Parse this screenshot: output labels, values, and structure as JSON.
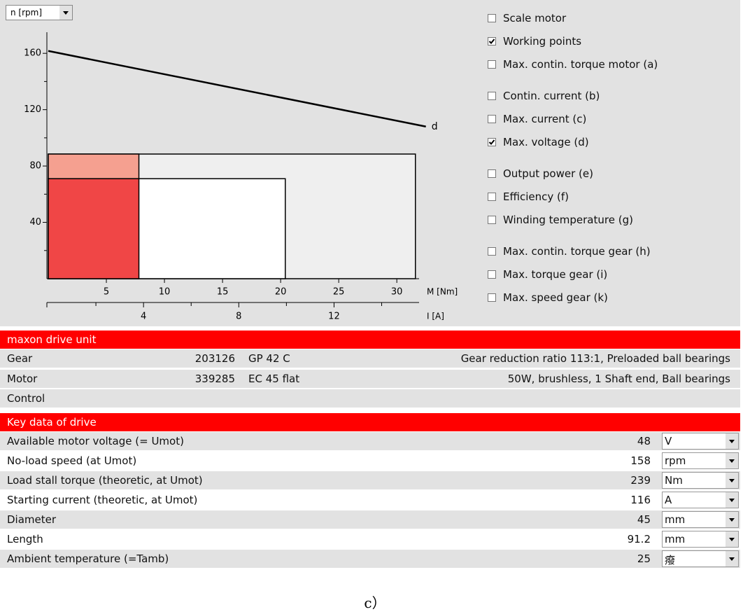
{
  "dropdown": "n [rpm]",
  "chart_data": {
    "type": "line",
    "x_label": "M [Nm]",
    "x2_label": "I [A]",
    "xlim": [
      0,
      33
    ],
    "ylim": [
      0,
      175
    ],
    "xticks": [
      5,
      10,
      15,
      20,
      25,
      30
    ],
    "yticks": [
      40,
      80,
      120,
      160
    ],
    "y_minor_ticks": [
      20,
      60,
      100,
      140
    ],
    "x2lim": [
      0,
      16.1
    ],
    "x2ticks": [
      4,
      8,
      12
    ],
    "x2_minor_ticks": [
      2,
      6,
      10,
      14
    ],
    "regions": [
      {
        "color": "#efefef",
        "x": [
          0,
          31.6
        ],
        "y": [
          0,
          88.5
        ]
      },
      {
        "color": "#ffffff",
        "x": [
          0,
          20.4
        ],
        "y": [
          0,
          71
        ]
      },
      {
        "color": "#f5a090",
        "x": [
          0,
          7.8
        ],
        "y": [
          71,
          88.5
        ]
      },
      {
        "color": "#f04646",
        "x": [
          0,
          7.8
        ],
        "y": [
          0,
          71
        ]
      }
    ],
    "series": [
      {
        "name": "d",
        "color": "#000000",
        "x": [
          0,
          32.5
        ],
        "values": [
          161.7,
          108
        ]
      }
    ]
  },
  "options": [
    [
      {
        "label": "Scale motor",
        "checked": false
      },
      {
        "label": "Working points",
        "checked": true
      },
      {
        "label": "Max. contin. torque motor (a)",
        "checked": false
      }
    ],
    [
      {
        "label": "Contin. current (b)",
        "checked": false
      },
      {
        "label": "Max. current (c)",
        "checked": false
      },
      {
        "label": "Max. voltage (d)",
        "checked": true
      }
    ],
    [
      {
        "label": "Output power (e)",
        "checked": false
      },
      {
        "label": "Efficiency (f)",
        "checked": false
      },
      {
        "label": "Winding temperature (g)",
        "checked": false
      }
    ],
    [
      {
        "label": "Max. contin. torque gear (h)",
        "checked": false
      },
      {
        "label": "Max. torque gear (i)",
        "checked": false
      },
      {
        "label": "Max. speed gear (k)",
        "checked": false
      }
    ]
  ],
  "drive_unit": {
    "title": "maxon drive unit",
    "rows": [
      [
        "Gear",
        "203126",
        "GP 42 C",
        "Gear reduction ratio 113:1, Preloaded ball bearings"
      ],
      [
        "Motor",
        "339285",
        "EC 45 flat",
        "50W, brushless, 1 Shaft end, Ball bearings"
      ],
      [
        "Control"
      ]
    ]
  },
  "key_data": {
    "title": "Key data of drive",
    "rows": [
      [
        "Available motor voltage (= Umot)",
        48,
        "V"
      ],
      [
        "No-load speed (at Umot)",
        158,
        "rpm"
      ],
      [
        "Load stall torque (theoretic, at Umot)",
        239,
        "Nm"
      ],
      [
        "Starting current (theoretic, at Umot)",
        116,
        "A"
      ],
      [
        "Diameter",
        45,
        "mm"
      ],
      [
        "Length",
        91.2,
        "mm"
      ],
      [
        "Ambient temperature (=Tamb)",
        25,
        "癈"
      ]
    ]
  },
  "caption": "c）"
}
